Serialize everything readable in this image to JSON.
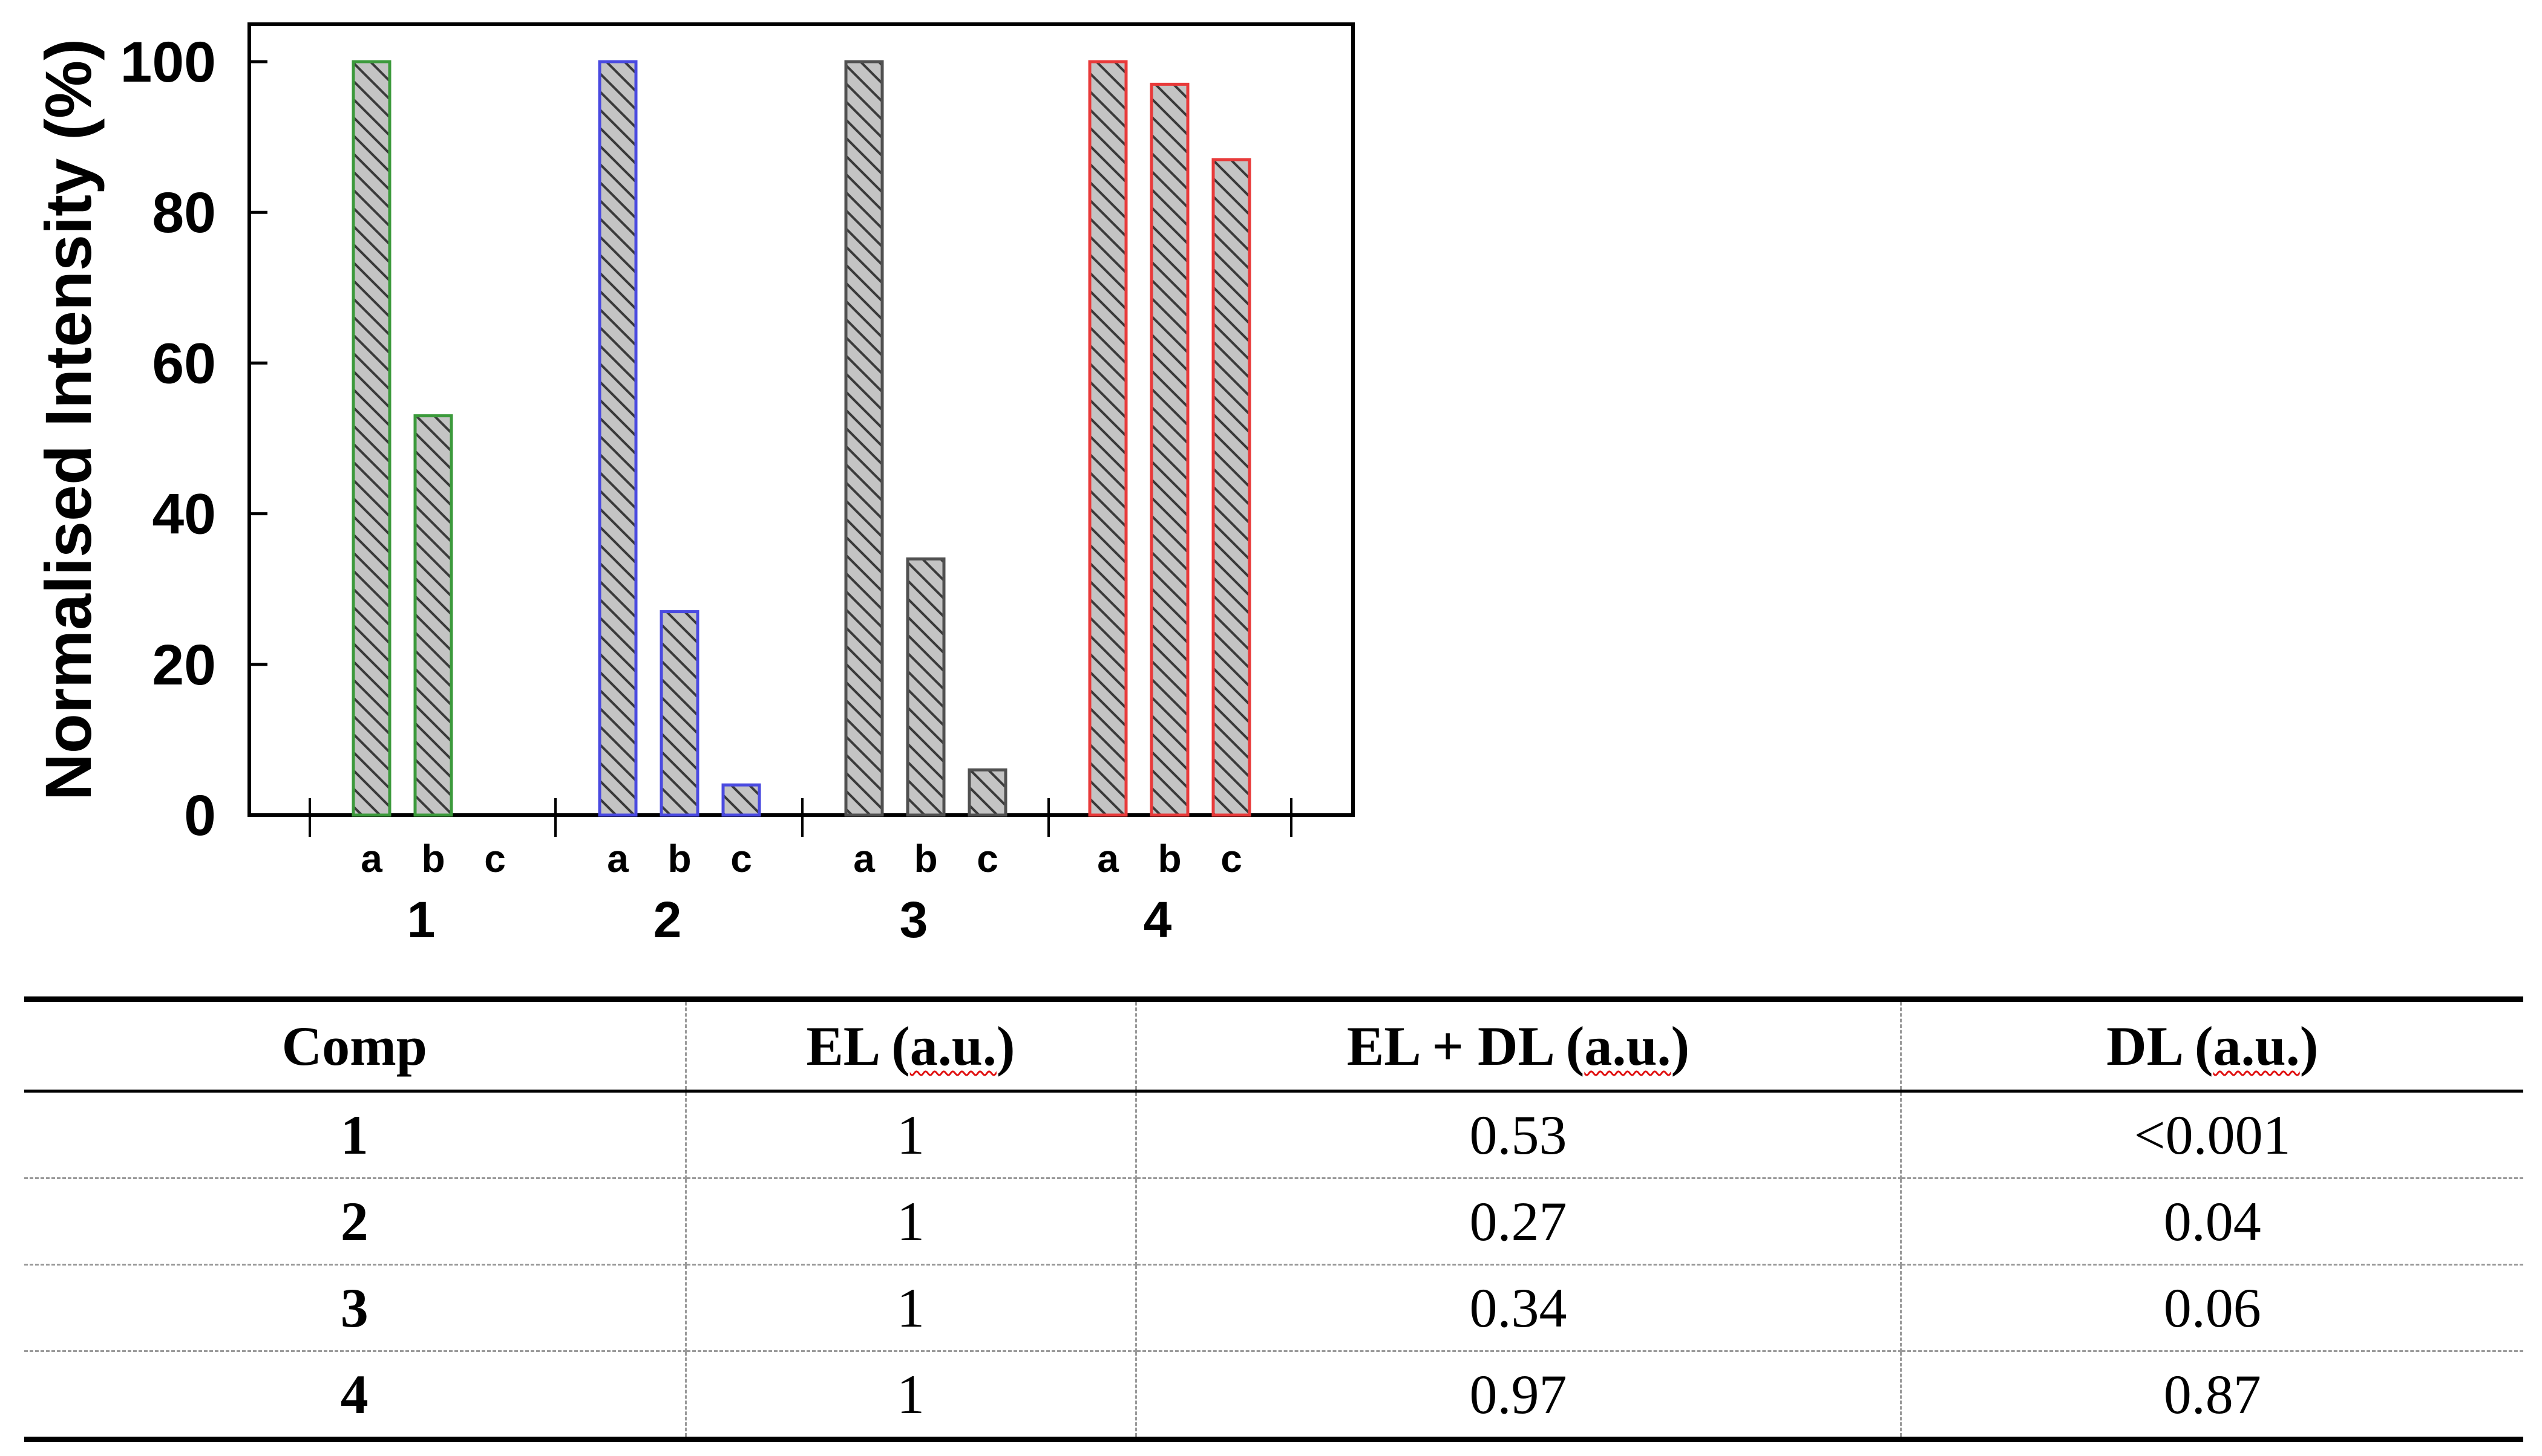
{
  "chart_data": {
    "type": "bar",
    "ylabel": "Normalised Intensity (%)",
    "ylim": [
      0,
      100
    ],
    "yticks": [
      0,
      20,
      40,
      60,
      80,
      100
    ],
    "groups": [
      "1",
      "2",
      "3",
      "4"
    ],
    "subcategories": [
      "a",
      "b",
      "c"
    ],
    "series": [
      {
        "group": "1",
        "values": [
          100,
          53,
          0
        ],
        "color": "#3c9a3c"
      },
      {
        "group": "2",
        "values": [
          100,
          27,
          4
        ],
        "color": "#4a4ae0"
      },
      {
        "group": "3",
        "values": [
          100,
          34,
          6
        ],
        "color": "#505050"
      },
      {
        "group": "4",
        "values": [
          100,
          97,
          87
        ],
        "color": "#e83a3a"
      }
    ],
    "bar_fill": "#c4c4c4",
    "pattern": "diagonal-hatch",
    "grid": false
  },
  "table": {
    "headers": [
      "Comp",
      "EL (",
      "a.u.",
      ")",
      "EL + DL (",
      "a.u.",
      ")",
      "DL (",
      "a.u.",
      ")"
    ],
    "rows": [
      [
        "1",
        "1",
        "0.53",
        "<0.001"
      ],
      [
        "2",
        "1",
        "0.27",
        "0.04"
      ],
      [
        "3",
        "1",
        "0.34",
        "0.06"
      ],
      [
        "4",
        "1",
        "0.97",
        "0.87"
      ]
    ]
  }
}
